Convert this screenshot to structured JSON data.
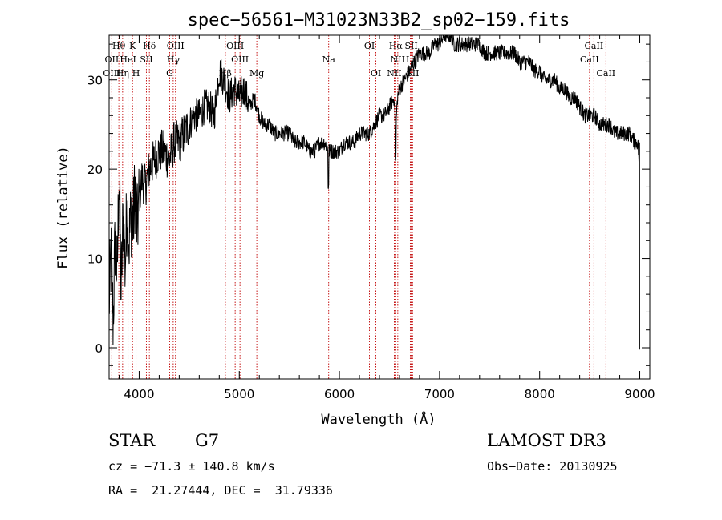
{
  "chart_data": {
    "type": "line",
    "title": "spec−56561−M31023N33B2_sp02−159.fits",
    "xlabel": "Wavelength (Å)",
    "ylabel": "Flux (relative)",
    "xlim": [
      3700,
      9100
    ],
    "ylim": [
      -3.5,
      35
    ],
    "xticks": [
      4000,
      5000,
      6000,
      7000,
      8000,
      9000
    ],
    "yticks": [
      0,
      10,
      20,
      30
    ],
    "grid": false,
    "line_color": "#000000",
    "marker_color": "#c00000",
    "series": [
      {
        "x": [
          3700,
          3720,
          3740,
          3760,
          3780,
          3800,
          3820,
          3840,
          3860,
          3880,
          3900,
          3920,
          3940,
          3960,
          3980,
          4000,
          4030,
          4060,
          4100,
          4150,
          4200,
          4250,
          4300,
          4350,
          4400,
          4450,
          4500,
          4550,
          4600,
          4650,
          4700,
          4750,
          4800,
          4850,
          4900,
          4950,
          5000,
          5050,
          5100,
          5150,
          5200,
          5250,
          5300,
          5350,
          5400,
          5450,
          5500,
          5550,
          5600,
          5650,
          5700,
          5750,
          5800,
          5850,
          5900,
          5950,
          6000,
          6050,
          6100,
          6150,
          6200,
          6250,
          6300,
          6350,
          6400,
          6450,
          6500,
          6550,
          6560,
          6580,
          6600,
          6650,
          6700,
          6750,
          6800,
          6850,
          6900,
          6950,
          7000,
          7050,
          7100,
          7150,
          7200,
          7250,
          7300,
          7350,
          7400,
          7450,
          7500,
          7550,
          7600,
          7650,
          7700,
          7750,
          7800,
          7850,
          7900,
          7950,
          8000,
          8050,
          8100,
          8150,
          8200,
          8250,
          8300,
          8350,
          8400,
          8450,
          8500,
          8550,
          8600,
          8650,
          8700,
          8750,
          8800,
          8850,
          8900,
          8950,
          8980,
          9000
        ],
        "y": [
          5,
          10,
          3,
          12,
          8,
          20,
          6,
          15,
          9,
          16,
          12,
          15,
          14,
          18,
          13,
          17,
          19,
          18,
          20,
          21,
          22,
          22,
          21,
          23,
          23,
          24,
          25,
          26,
          26,
          27,
          27,
          26,
          31,
          30,
          28,
          29,
          28,
          29,
          27,
          28,
          26,
          25,
          25,
          24,
          24,
          24,
          24,
          23,
          23,
          23,
          22,
          22,
          23,
          23,
          22,
          22,
          22,
          23,
          23,
          23,
          24,
          24,
          24,
          25,
          26,
          26,
          27,
          28,
          24,
          28,
          29,
          30,
          31,
          32,
          33,
          33,
          33,
          34,
          34,
          35,
          35,
          34,
          34,
          34,
          34,
          34,
          34,
          33,
          33,
          33,
          33,
          33,
          33,
          33,
          32,
          32,
          32,
          31,
          31,
          30,
          30,
          30,
          29,
          29,
          28,
          28,
          27,
          26,
          26,
          26,
          25,
          25,
          25,
          24,
          24,
          24,
          24,
          23,
          23,
          20
        ]
      }
    ],
    "lines": [
      {
        "name": "Hθ",
        "x": 3797,
        "row": 0
      },
      {
        "name": "K",
        "x": 3934,
        "row": 0
      },
      {
        "name": "Hδ",
        "x": 4102,
        "row": 0
      },
      {
        "name": "OIII",
        "x": 4363,
        "row": 0
      },
      {
        "name": "OIII",
        "x": 4959,
        "row": 0
      },
      {
        "name": "OI",
        "x": 6300,
        "row": 0
      },
      {
        "name": "Hα",
        "x": 6563,
        "row": 0
      },
      {
        "name": "SII",
        "x": 6717,
        "row": 0
      },
      {
        "name": "CaII",
        "x": 8542,
        "row": 0
      },
      {
        "name": "OII",
        "x": 3727,
        "row": 1
      },
      {
        "name": "HeI",
        "x": 3889,
        "row": 1
      },
      {
        "name": "SII",
        "x": 4072,
        "row": 1
      },
      {
        "name": "Hγ",
        "x": 4340,
        "row": 1
      },
      {
        "name": "OIII",
        "x": 5007,
        "row": 1
      },
      {
        "name": "Na",
        "x": 5893,
        "row": 1
      },
      {
        "name": "NII",
        "x": 6583,
        "row": 1
      },
      {
        "name": "Li",
        "x": 6708,
        "row": 1
      },
      {
        "name": "CaII",
        "x": 8498,
        "row": 1
      },
      {
        "name": "OIII",
        "x": 3727,
        "row": 2
      },
      {
        "name": "Hη",
        "x": 3835,
        "row": 2
      },
      {
        "name": "H",
        "x": 3969,
        "row": 2
      },
      {
        "name": "G",
        "x": 4305,
        "row": 2
      },
      {
        "name": "Hβ",
        "x": 4861,
        "row": 2
      },
      {
        "name": "Mg",
        "x": 5175,
        "row": 2
      },
      {
        "name": "OI",
        "x": 6364,
        "row": 2
      },
      {
        "name": "NII",
        "x": 6548,
        "row": 2
      },
      {
        "name": "SII",
        "x": 6731,
        "row": 2
      },
      {
        "name": "CaII",
        "x": 8662,
        "row": 2
      }
    ]
  },
  "info": {
    "class_label": "STAR",
    "subclass": "G7",
    "cz": "cz = −71.3 ± 140.8 km/s",
    "radec": "RA =  21.27444, DEC =  31.79336",
    "survey": "LAMOST DR3",
    "obs_date": "Obs−Date: 20130925"
  }
}
